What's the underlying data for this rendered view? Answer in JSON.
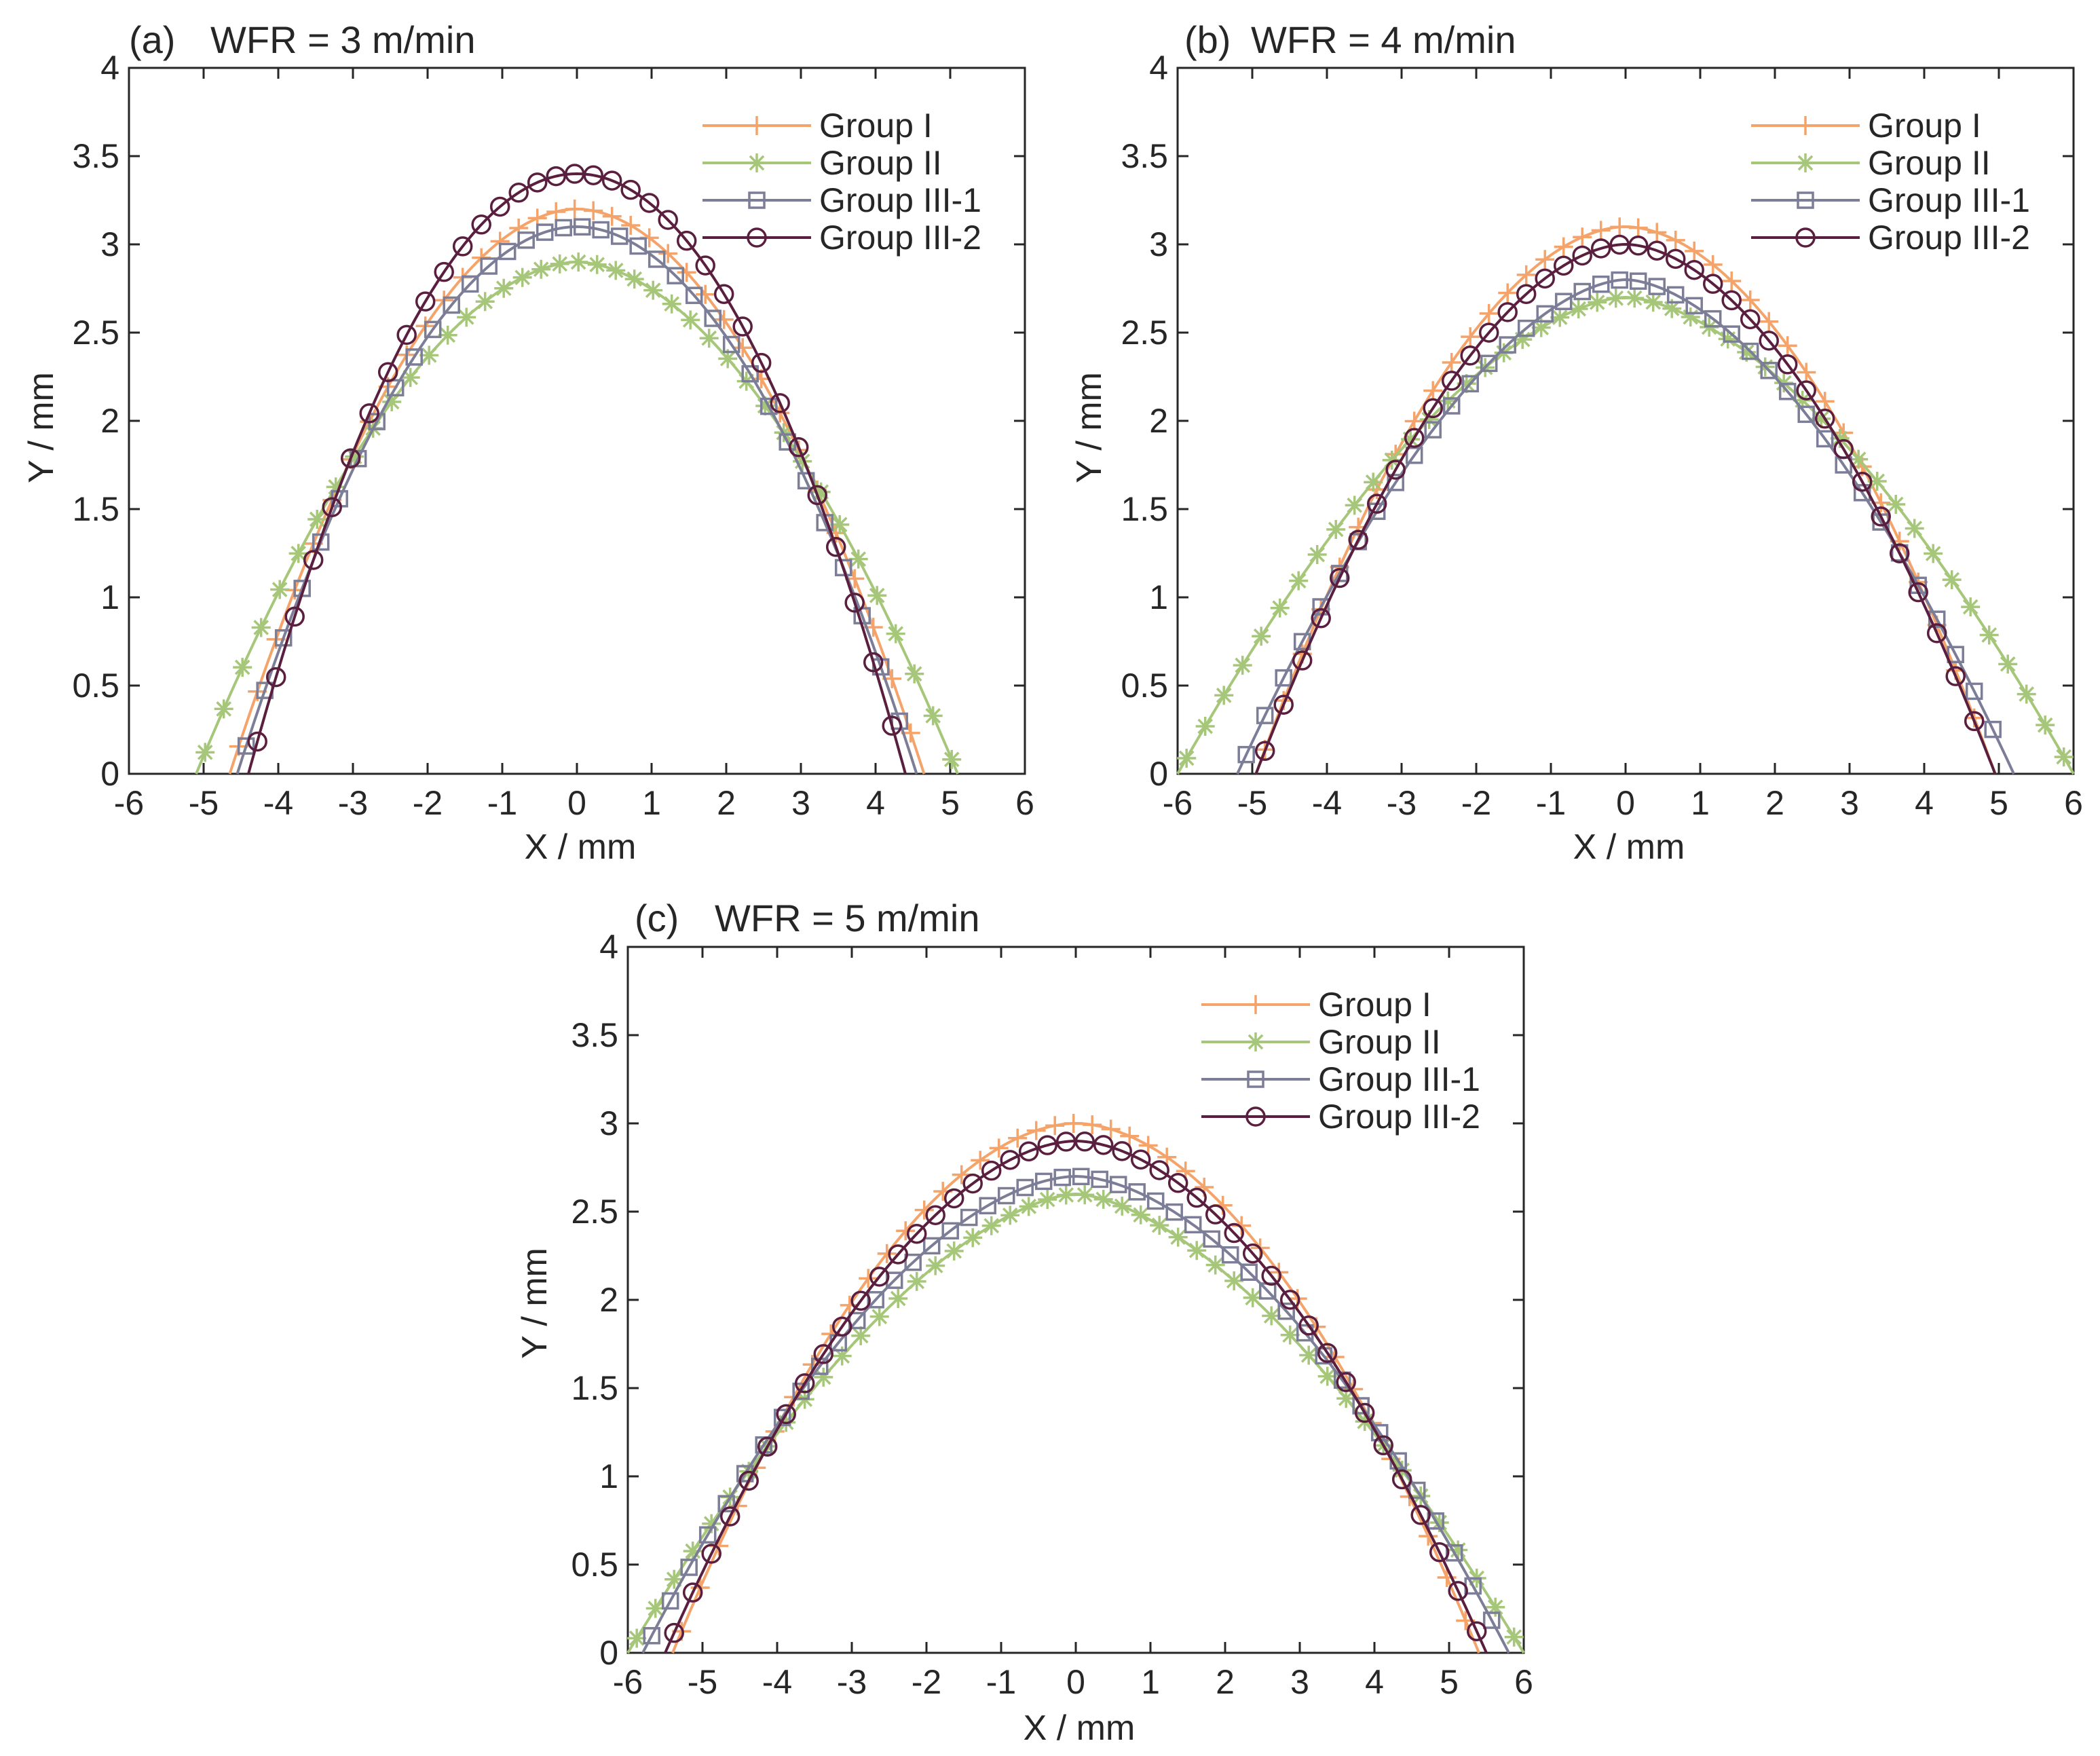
{
  "figure": {
    "colors": {
      "group_i": "#F4A46A",
      "group_ii": "#A6C77A",
      "group_iii_1": "#7C7D97",
      "group_iii_2": "#5A1E3E",
      "axis": "#262626"
    }
  },
  "chart_data": [
    {
      "type": "line",
      "panel": "(a)",
      "title": "WFR = 3 m/min",
      "xlabel": "X / mm",
      "ylabel": "Y / mm",
      "xlim": [
        -6,
        6
      ],
      "ylim": [
        0,
        4
      ],
      "xticks": [
        "-6",
        "-5",
        "-4",
        "-3",
        "-2",
        "-1",
        "0",
        "1",
        "2",
        "3",
        "4",
        "5",
        "6"
      ],
      "yticks": [
        "0",
        "0.5",
        "1",
        "1.5",
        "2",
        "2.5",
        "3",
        "3.5",
        "4"
      ],
      "legend_position": "top-right",
      "series": [
        {
          "name": "Group I",
          "marker": "plus",
          "half_width": 4.65,
          "peak": 3.2,
          "shape": 1.9
        },
        {
          "name": "Group II",
          "marker": "star",
          "half_width": 5.1,
          "peak": 2.9,
          "shape": 1.8
        },
        {
          "name": "Group III-1",
          "marker": "square",
          "half_width": 4.55,
          "peak": 3.1,
          "shape": 1.95
        },
        {
          "name": "Group III-2",
          "marker": "circle",
          "half_width": 4.4,
          "peak": 3.4,
          "shape": 2.0
        }
      ]
    },
    {
      "type": "line",
      "panel": "(b)",
      "title": "WFR = 4 m/min",
      "xlabel": "X / mm",
      "ylabel": "Y / mm",
      "xlim": [
        -6,
        6
      ],
      "ylim": [
        0,
        4
      ],
      "xticks": [
        "-6",
        "-5",
        "-4",
        "-3",
        "-2",
        "-1",
        "0",
        "1",
        "2",
        "3",
        "4",
        "5",
        "6"
      ],
      "yticks": [
        "0",
        "0.5",
        "1",
        "1.5",
        "2",
        "2.5",
        "3",
        "3.5",
        "4"
      ],
      "legend_position": "top-right",
      "series": [
        {
          "name": "Group I",
          "marker": "plus",
          "half_width": 4.95,
          "peak": 3.1,
          "shape": 1.85
        },
        {
          "name": "Group II",
          "marker": "star",
          "half_width": 6.0,
          "peak": 2.7,
          "shape": 1.65
        },
        {
          "name": "Group III-1",
          "marker": "square",
          "half_width": 5.2,
          "peak": 2.8,
          "shape": 1.7
        },
        {
          "name": "Group III-2",
          "marker": "circle",
          "half_width": 4.95,
          "peak": 3.0,
          "shape": 1.8
        }
      ]
    },
    {
      "type": "line",
      "panel": "(c)",
      "title": "WFR = 5 m/min",
      "xlabel": "X / mm",
      "ylabel": "Y / mm",
      "xlim": [
        -6,
        6
      ],
      "ylim": [
        0,
        4
      ],
      "xticks": [
        "-6",
        "-5",
        "-4",
        "-3",
        "-2",
        "-1",
        "0",
        "1",
        "2",
        "3",
        "4",
        "5",
        "6"
      ],
      "yticks": [
        "0",
        "0.5",
        "1",
        "1.5",
        "2",
        "2.5",
        "3",
        "3.5",
        "4"
      ],
      "legend_position": "top-right",
      "series": [
        {
          "name": "Group I",
          "marker": "plus",
          "half_width": 5.4,
          "peak": 3.0,
          "shape": 1.85
        },
        {
          "name": "Group II",
          "marker": "star",
          "half_width": 6.0,
          "peak": 2.6,
          "shape": 1.6
        },
        {
          "name": "Group III-1",
          "marker": "square",
          "half_width": 5.8,
          "peak": 2.7,
          "shape": 1.75
        },
        {
          "name": "Group III-2",
          "marker": "circle",
          "half_width": 5.5,
          "peak": 2.9,
          "shape": 1.8
        }
      ]
    }
  ]
}
